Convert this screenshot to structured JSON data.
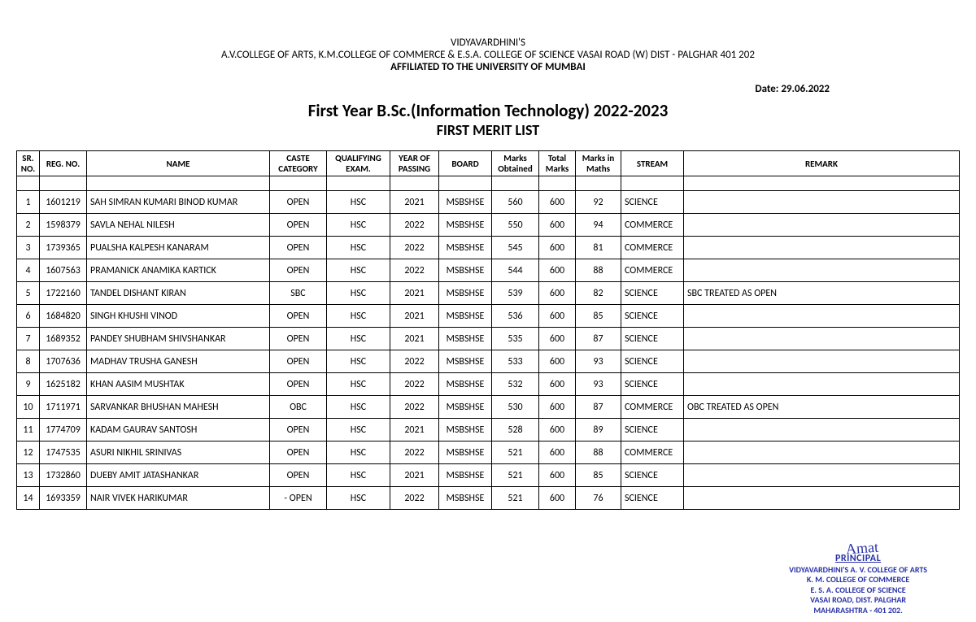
{
  "header": {
    "line1": "VIDYAVARDHINI'S",
    "line2": "A.V.COLLEGE OF ARTS, K.M.COLLEGE OF COMMERCE & E.S.A. COLLEGE OF SCIENCE VASAI ROAD (W) DIST - PALGHAR 401 202",
    "line3": "AFFILIATED TO THE UNIVERSITY OF MUMBAI",
    "date_label": "Date: 29.06.2022",
    "title1": "First Year B.Sc.(Information Technology) 2022-2023",
    "title2": "FIRST MERIT LIST"
  },
  "table": {
    "columns": [
      "SR. NO.",
      "REG. NO.",
      "NAME",
      "CASTE CATEGORY",
      "QUALIFYING EXAM.",
      "YEAR OF PASSING",
      "BOARD",
      "Marks Obtained",
      "Total Marks",
      "Marks in Maths",
      "STREAM",
      "REMARK"
    ],
    "rows": [
      [
        "1",
        "1601219",
        "SAH SIMRAN KUMARI BINOD KUMAR",
        "OPEN",
        "HSC",
        "2021",
        "MSBSHSE",
        "560",
        "600",
        "92",
        "SCIENCE",
        ""
      ],
      [
        "2",
        "1598379",
        "SAVLA NEHAL NILESH",
        "OPEN",
        "HSC",
        "2022",
        "MSBSHSE",
        "550",
        "600",
        "94",
        "COMMERCE",
        ""
      ],
      [
        "3",
        "1739365",
        "PUALSHA KALPESH KANARAM",
        "OPEN",
        "HSC",
        "2022",
        "MSBSHSE",
        "545",
        "600",
        "81",
        "COMMERCE",
        ""
      ],
      [
        "4",
        "1607563",
        "PRAMANICK ANAMIKA KARTICK",
        "OPEN",
        "HSC",
        "2022",
        "MSBSHSE",
        "544",
        "600",
        "88",
        "COMMERCE",
        ""
      ],
      [
        "5",
        "1722160",
        "TANDEL DISHANT KIRAN",
        "SBC",
        "HSC",
        "2021",
        "MSBSHSE",
        "539",
        "600",
        "82",
        "SCIENCE",
        "SBC TREATED AS OPEN"
      ],
      [
        "6",
        "1684820",
        "SINGH KHUSHI VINOD",
        "OPEN",
        "HSC",
        "2021",
        "MSBSHSE",
        "536",
        "600",
        "85",
        "SCIENCE",
        ""
      ],
      [
        "7",
        "1689352",
        "PANDEY SHUBHAM SHIVSHANKAR",
        "OPEN",
        "HSC",
        "2021",
        "MSBSHSE",
        "535",
        "600",
        "87",
        "SCIENCE",
        ""
      ],
      [
        "8",
        "1707636",
        "MADHAV TRUSHA GANESH",
        "OPEN",
        "HSC",
        "2022",
        "MSBSHSE",
        "533",
        "600",
        "93",
        "SCIENCE",
        ""
      ],
      [
        "9",
        "1625182",
        "KHAN AASIM MUSHTAK",
        "OPEN",
        "HSC",
        "2022",
        "MSBSHSE",
        "532",
        "600",
        "93",
        "SCIENCE",
        ""
      ],
      [
        "10",
        "1711971",
        "SARVANKAR BHUSHAN MAHESH",
        "OBC",
        "HSC",
        "2022",
        "MSBSHSE",
        "530",
        "600",
        "87",
        "COMMERCE",
        "OBC TREATED AS OPEN"
      ],
      [
        "11",
        "1774709",
        "KADAM GAURAV SANTOSH",
        "OPEN",
        "HSC",
        "2021",
        "MSBSHSE",
        "528",
        "600",
        "89",
        "SCIENCE",
        ""
      ],
      [
        "12",
        "1747535",
        "ASURI NIKHIL SRINIVAS",
        "OPEN",
        "HSC",
        "2022",
        "MSBSHSE",
        "521",
        "600",
        "88",
        "COMMERCE",
        ""
      ],
      [
        "13",
        "1732860",
        "DUEBY AMIT JATASHANKAR",
        "OPEN",
        "HSC",
        "2021",
        "MSBSHSE",
        "521",
        "600",
        "85",
        "SCIENCE",
        ""
      ],
      [
        "14",
        "1693359",
        "NAIR VIVEK HARIKUMAR",
        "- OPEN",
        "HSC",
        "2022",
        "MSBSHSE",
        "521",
        "600",
        "76",
        "SCIENCE",
        ""
      ]
    ]
  },
  "stamp": {
    "signature": "Amat",
    "principal": "PRINCIPAL",
    "l1": "VIDYAVARDHINI'S A. V. COLLEGE OF ARTS",
    "l2": "K. M. COLLEGE OF COMMERCE",
    "l3": "E. S. A. COLLEGE OF SCIENCE",
    "l4": "VASAI ROAD, DIST. PALGHAR",
    "l5": "MAHARASHTRA - 401 202."
  }
}
